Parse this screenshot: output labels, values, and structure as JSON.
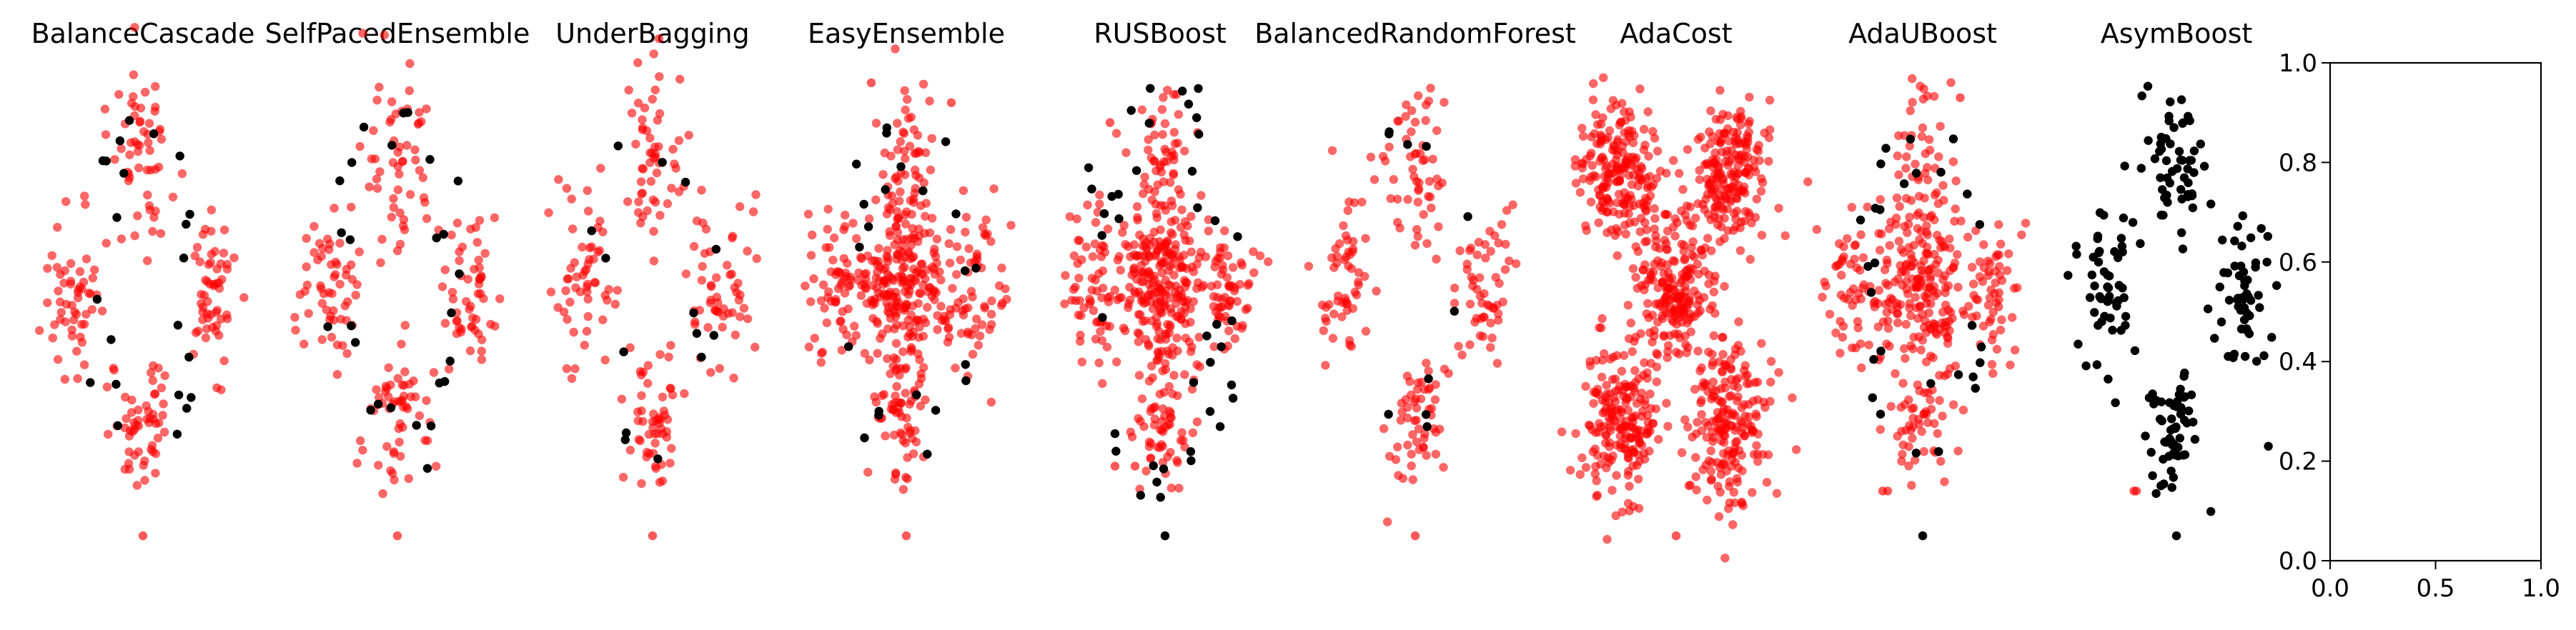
{
  "chart_data": [
    {
      "type": "scatter",
      "title": "BalanceCascade",
      "colors": {
        "minority": "#ff0000",
        "majority": "#000000"
      },
      "axes_visible": false
    },
    {
      "type": "scatter",
      "title": "SelfPacedEnsemble",
      "colors": {
        "minority": "#ff0000",
        "majority": "#000000"
      },
      "axes_visible": false
    },
    {
      "type": "scatter",
      "title": "UnderBagging",
      "colors": {
        "minority": "#ff0000",
        "majority": "#000000"
      },
      "axes_visible": false
    },
    {
      "type": "scatter",
      "title": "EasyEnsemble",
      "colors": {
        "minority": "#ff0000",
        "majority": "#000000"
      },
      "axes_visible": false
    },
    {
      "type": "scatter",
      "title": "RUSBoost",
      "colors": {
        "minority": "#ff0000",
        "majority": "#000000"
      },
      "axes_visible": false
    },
    {
      "type": "scatter",
      "title": "BalancedRandomForest",
      "colors": {
        "minority": "#ff0000",
        "majority": "#000000"
      },
      "axes_visible": false
    },
    {
      "type": "scatter",
      "title": "AdaCost",
      "colors": {
        "minority": "#ff0000",
        "majority": "#000000"
      },
      "axes_visible": false
    },
    {
      "type": "scatter",
      "title": "AdaUBoost",
      "colors": {
        "minority": "#ff0000",
        "majority": "#000000"
      },
      "axes_visible": false
    },
    {
      "type": "scatter",
      "title": "AsymBoost",
      "colors": {
        "minority": "#ff0000",
        "majority": "#000000"
      },
      "axes_visible": false
    },
    {
      "type": "scatter",
      "title": "",
      "x": [],
      "y": [],
      "xlim": [
        0.0,
        1.0
      ],
      "ylim": [
        0.0,
        1.0
      ],
      "xticks": [
        "0.0",
        "0.5",
        "1.0"
      ],
      "yticks": [
        "0.0",
        "0.2",
        "0.4",
        "0.6",
        "0.8",
        "1.0"
      ],
      "axes_visible": true
    }
  ]
}
